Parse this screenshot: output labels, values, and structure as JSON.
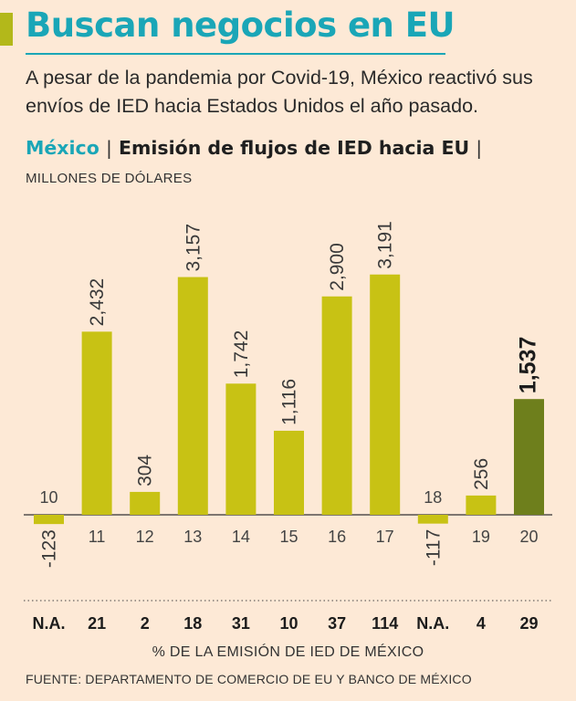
{
  "header": {
    "title": "Buscan negocios en EU",
    "subtitle": "A pesar de la pandemia por Covid-19, México reactivó sus envíos de IED hacia Estados Unidos el año pasado.",
    "chart_country": "México",
    "separator": "|",
    "chart_metric": "Emisión de flujos de IED hacia EU",
    "units": "MILLONES DE DÓLARES"
  },
  "footer": {
    "xlabel": "% DE LA EMISIÓN DE IED DE MÉXICO",
    "source": "FUENTE: DEPARTAMENTO DE COMERCIO DE EU Y BANCO DE MÉXICO"
  },
  "colors": {
    "background": "#fde9d6",
    "bar": "#c8c214",
    "highlight_bar": "#6e7f1c",
    "title": "#1aa6b7",
    "accent": "#b3b81a"
  },
  "chart_data": {
    "type": "bar",
    "title": "Emisión de flujos de IED hacia EU",
    "ylabel": "MILLONES DE DÓLARES",
    "xlabel": "% DE LA EMISIÓN DE IED DE MÉXICO",
    "categories": [
      "10",
      "11",
      "12",
      "13",
      "14",
      "15",
      "16",
      "17",
      "18",
      "19",
      "20"
    ],
    "values": [
      -123,
      2432,
      304,
      3157,
      1742,
      1116,
      2900,
      3191,
      -117,
      256,
      1537
    ],
    "value_labels": [
      "-123",
      "2,432",
      "304",
      "3,157",
      "1,742",
      "1,116",
      "2,900",
      "3,191",
      "-117",
      "256",
      "1,537"
    ],
    "share_labels": [
      "N.A.",
      "21",
      "2",
      "18",
      "31",
      "10",
      "37",
      "114",
      "N.A.",
      "4",
      "29"
    ],
    "highlight_index": 10,
    "ylim": [
      -350,
      3300
    ]
  }
}
